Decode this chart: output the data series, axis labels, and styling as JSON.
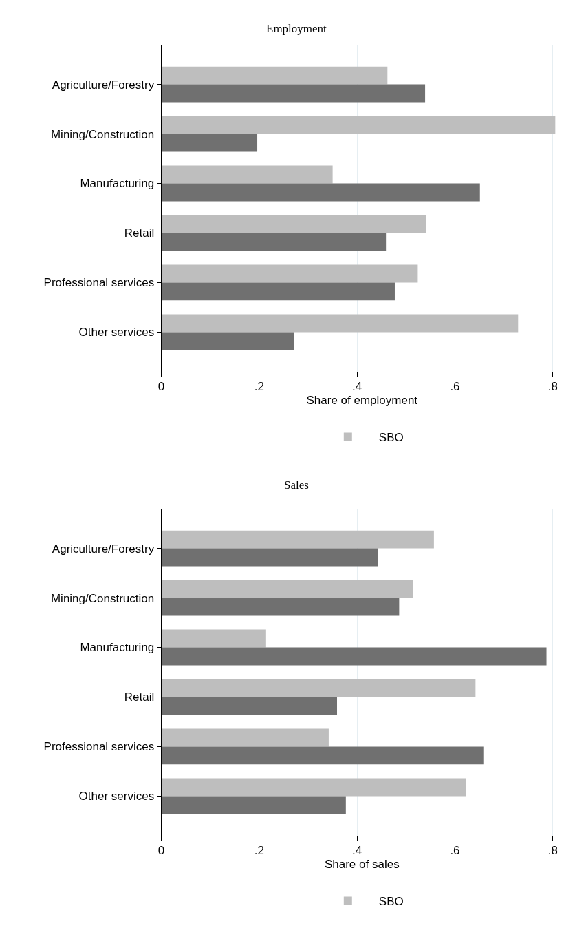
{
  "chart_data": [
    {
      "type": "bar",
      "orientation": "horizontal",
      "title": "Employment",
      "xlabel": "Share of employment",
      "categories": [
        "Agriculture/Forestry",
        "Mining/Construction",
        "Manufacturing",
        "Retail",
        "Professional services",
        "Other services"
      ],
      "series": [
        {
          "name": "SBO",
          "color": "#bebebe",
          "values": [
            0.462,
            0.805,
            0.35,
            0.541,
            0.524,
            0.729
          ]
        },
        {
          "color": "#707070",
          "values": [
            0.539,
            0.196,
            0.651,
            0.459,
            0.477,
            0.271
          ]
        }
      ],
      "xlim": [
        0,
        0.82
      ],
      "xticks": [
        0,
        {
          "value": 0.2,
          "label": ".2"
        },
        {
          "value": 0.4,
          "label": ".4"
        },
        {
          "value": 0.6,
          "label": ".6"
        },
        {
          "value": 0.8,
          "label": ".8"
        }
      ],
      "grid": "x",
      "legend": "bottom"
    },
    {
      "type": "bar",
      "orientation": "horizontal",
      "title": "Sales",
      "xlabel": "Share of sales",
      "categories": [
        "Agriculture/Forestry",
        "Mining/Construction",
        "Manufacturing",
        "Retail",
        "Professional services",
        "Other services"
      ],
      "series": [
        {
          "name": "SBO",
          "color": "#bebebe",
          "values": [
            0.557,
            0.515,
            0.214,
            0.642,
            0.342,
            0.622
          ]
        },
        {
          "color": "#707070",
          "values": [
            0.442,
            0.486,
            0.787,
            0.359,
            0.658,
            0.377
          ]
        }
      ],
      "xlim": [
        0,
        0.82
      ],
      "xticks": [
        0,
        {
          "value": 0.2,
          "label": ".2"
        },
        {
          "value": 0.4,
          "label": ".4"
        },
        {
          "value": 0.6,
          "label": ".6"
        },
        {
          "value": 0.8,
          "label": ".8"
        }
      ],
      "grid": "x",
      "legend": "bottom"
    }
  ]
}
